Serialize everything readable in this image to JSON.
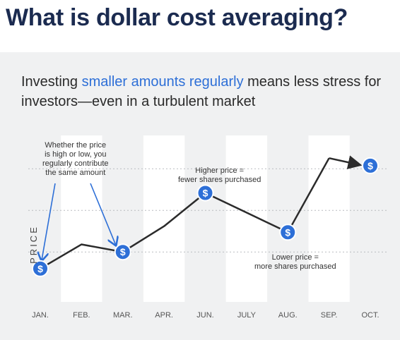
{
  "title": "What is dollar cost averaging?",
  "subtitle": {
    "part1": "Investing ",
    "accent": "smaller amounts regularly",
    "part2": " means less stress for investors—even in a turbulent market"
  },
  "colors": {
    "title": "#1b2b50",
    "accent": "#2d6fd7",
    "line": "#2b2b2b",
    "marker": "#2d6fd7",
    "panel_bg": "#f0f1f2",
    "column_band": "#ffffff"
  },
  "annotations": {
    "left": [
      "Whether the price",
      "is high or low, you",
      "regularly contribute",
      "the same amount"
    ],
    "high": [
      "Higher price =",
      "fewer shares purchased"
    ],
    "low": [
      "Lower price =",
      "more shares purchased"
    ]
  },
  "marker_icon": "dollar-coin-icon",
  "chart_data": {
    "type": "line",
    "title": "",
    "xlabel": "",
    "ylabel": "PRICE",
    "categories": [
      "JAN.",
      "FEB.",
      "MAR.",
      "APR.",
      "JUN.",
      "JULY",
      "AUG.",
      "SEP.",
      "OCT."
    ],
    "values": [
      22,
      38,
      33,
      50,
      72,
      59,
      46,
      95,
      90
    ],
    "ylim": [
      0,
      110
    ],
    "y_ticks_shown": false,
    "grid": "horizontal dotted",
    "dollar_markers_at": [
      "JAN.",
      "MAR.",
      "JUN.",
      "AUG.",
      "OCT."
    ]
  }
}
